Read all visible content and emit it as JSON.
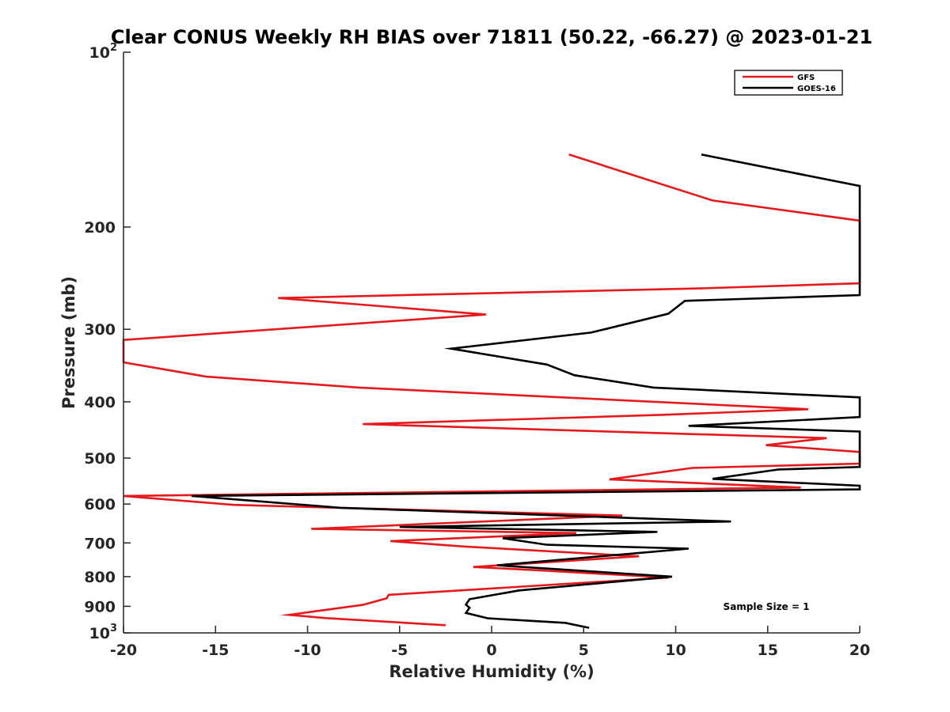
{
  "chart_data": {
    "type": "line",
    "title": "Clear CONUS Weekly RH BIAS over 71811 (50.22, -66.27) @ 2023-01-21",
    "xlabel": "Relative Humidity (%)",
    "ylabel": "Pressure (mb)",
    "xlim": [
      -20,
      20
    ],
    "ylim": [
      100,
      1000
    ],
    "y_scale": "log",
    "y_reversed": true,
    "grid": false,
    "legend_position": "top-right",
    "x_ticks": [
      {
        "value": -20,
        "label": "-20"
      },
      {
        "value": -15,
        "label": "-15"
      },
      {
        "value": -10,
        "label": "-10"
      },
      {
        "value": -5,
        "label": "-5"
      },
      {
        "value": 0,
        "label": "0"
      },
      {
        "value": 5,
        "label": "5"
      },
      {
        "value": 10,
        "label": "10"
      },
      {
        "value": 15,
        "label": "15"
      },
      {
        "value": 20,
        "label": "20"
      }
    ],
    "y_ticks": [
      {
        "value": 100,
        "base": "10",
        "exp": "2"
      },
      {
        "value": 200,
        "base": "200",
        "exp": ""
      },
      {
        "value": 300,
        "base": "300",
        "exp": ""
      },
      {
        "value": 400,
        "base": "400",
        "exp": ""
      },
      {
        "value": 500,
        "base": "500",
        "exp": ""
      },
      {
        "value": 600,
        "base": "600",
        "exp": ""
      },
      {
        "value": 700,
        "base": "700",
        "exp": ""
      },
      {
        "value": 800,
        "base": "800",
        "exp": ""
      },
      {
        "value": 900,
        "base": "900",
        "exp": ""
      },
      {
        "value": 1000,
        "base": "10",
        "exp": "3"
      }
    ],
    "series": [
      {
        "name": "GFS",
        "color": "#e41a1c",
        "points": [
          [
            4.2,
            150
          ],
          [
            12.0,
            180
          ],
          [
            20.0,
            195
          ],
          [
            20.0,
            250
          ],
          [
            11.5,
            255
          ],
          [
            -11.6,
            265
          ],
          [
            -0.3,
            283
          ],
          [
            -20.0,
            313
          ],
          [
            -20.0,
            342
          ],
          [
            -15.5,
            362
          ],
          [
            -7.2,
            378
          ],
          [
            17.2,
            412
          ],
          [
            9.5,
            421
          ],
          [
            -7.0,
            437
          ],
          [
            18.2,
            462
          ],
          [
            14.9,
            475
          ],
          [
            20.0,
            488
          ],
          [
            20.0,
            511
          ],
          [
            10.9,
            520
          ],
          [
            6.4,
            544
          ],
          [
            16.8,
            562
          ],
          [
            -20.0,
            581
          ],
          [
            -14.0,
            602
          ],
          [
            7.1,
            628
          ],
          [
            -9.8,
            662
          ],
          [
            4.6,
            673
          ],
          [
            -5.5,
            695
          ],
          [
            -1.5,
            710
          ],
          [
            8.0,
            738
          ],
          [
            -1.0,
            770
          ],
          [
            2.5,
            780
          ],
          [
            9.6,
            803
          ],
          [
            -5.6,
            860
          ],
          [
            -5.7,
            872
          ],
          [
            -7.0,
            895
          ],
          [
            -9.5,
            917
          ],
          [
            -11.0,
            931
          ],
          [
            -9.0,
            943
          ],
          [
            -2.5,
            970
          ]
        ]
      },
      {
        "name": "GOES-16",
        "color": "#000000",
        "points": [
          [
            11.4,
            150
          ],
          [
            20.0,
            170
          ],
          [
            20.0,
            262
          ],
          [
            10.5,
            268
          ],
          [
            9.6,
            282
          ],
          [
            5.4,
            304
          ],
          [
            -2.2,
            324
          ],
          [
            3.0,
            345
          ],
          [
            4.5,
            360
          ],
          [
            8.8,
            378
          ],
          [
            20.0,
            393
          ],
          [
            20.0,
            425
          ],
          [
            10.7,
            440
          ],
          [
            20.0,
            450
          ],
          [
            20.0,
            518
          ],
          [
            15.6,
            523
          ],
          [
            12.0,
            543
          ],
          [
            20.0,
            558
          ],
          [
            20.0,
            566
          ],
          [
            -16.3,
            581
          ],
          [
            -8.2,
            609
          ],
          [
            13.0,
            643
          ],
          [
            -5.0,
            657
          ],
          [
            9.0,
            670
          ],
          [
            0.6,
            687
          ],
          [
            3.0,
            705
          ],
          [
            10.7,
            716
          ],
          [
            0.3,
            765
          ],
          [
            9.8,
            800
          ],
          [
            1.5,
            845
          ],
          [
            -1.2,
            875
          ],
          [
            -1.4,
            894
          ],
          [
            -1.2,
            905
          ],
          [
            -1.4,
            924
          ],
          [
            -0.2,
            944
          ],
          [
            4.0,
            961
          ],
          [
            5.3,
            980
          ]
        ]
      }
    ],
    "annotation": "Sample Size = 1"
  }
}
